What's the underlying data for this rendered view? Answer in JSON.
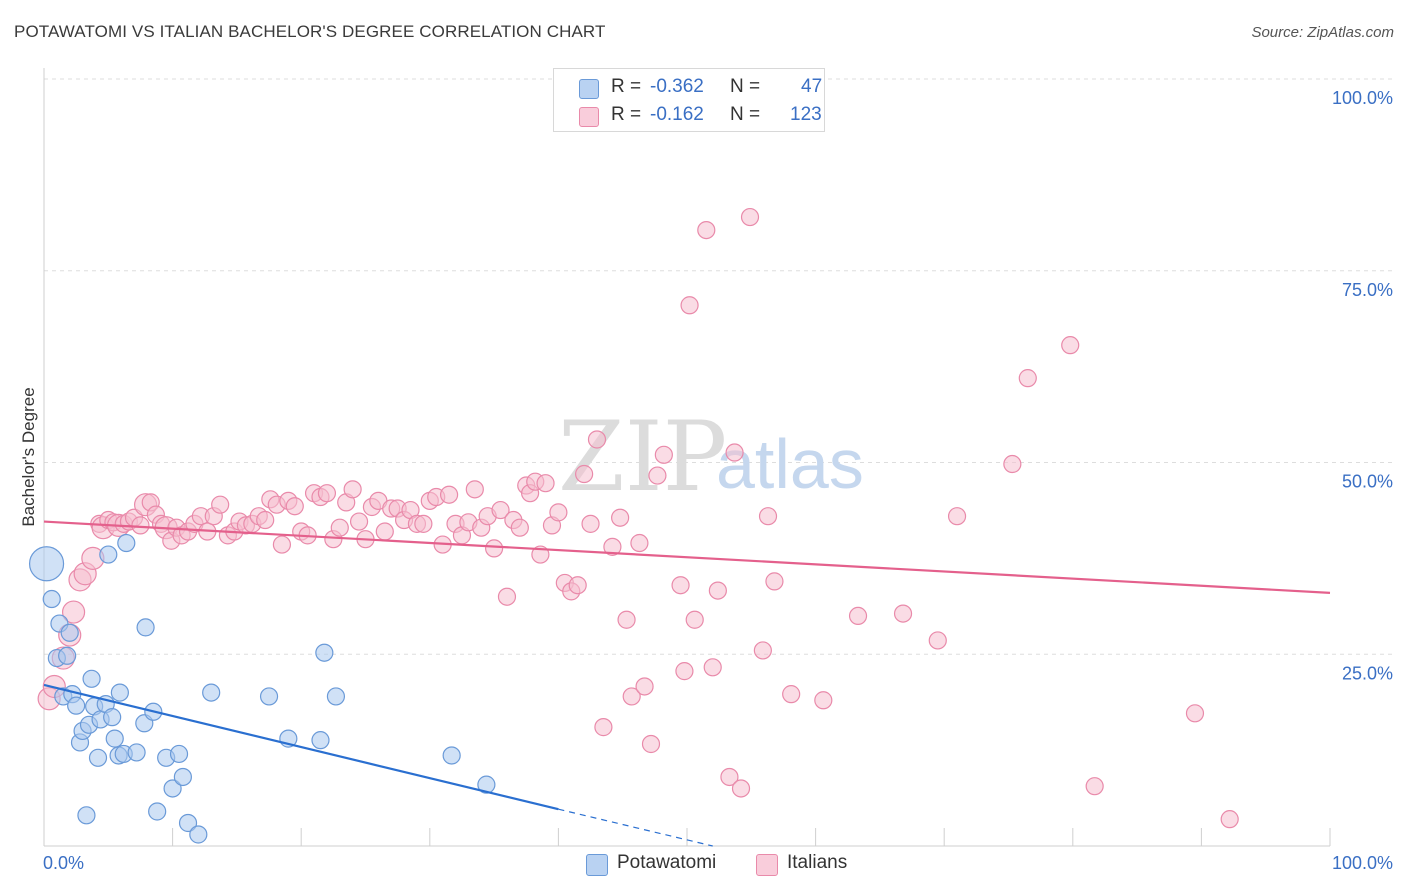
{
  "header": {
    "title": "POTAWATOMI VS ITALIAN BACHELOR'S DEGREE CORRELATION CHART",
    "source": "Source: ZipAtlas.com"
  },
  "legend": {
    "rows": [
      {
        "r_label": "R =",
        "r_value": "-0.362",
        "n_label": "N =",
        "n_value": "47"
      },
      {
        "r_label": "R =",
        "r_value": "-0.162",
        "n_label": "N =",
        "n_value": "123"
      }
    ],
    "bottom": [
      "Potawatomi",
      "Italians"
    ]
  },
  "colors": {
    "potawatomi_fill": "#a9c8ef",
    "potawatomi_stroke": "#6a9ad8",
    "potawatomi_line": "#2a6fd0",
    "italians_fill": "#f6bfd0",
    "italians_stroke": "#e98aaa",
    "italians_line": "#e4608c",
    "tick_label": "#3a6fc4"
  },
  "watermark": {
    "zip": "ZIP",
    "atlas": "atlas"
  },
  "chart_data": {
    "type": "scatter",
    "title": "POTAWATOMI VS ITALIAN BACHELOR'S DEGREE CORRELATION CHART",
    "xlabel": "",
    "ylabel": "Bachelor's Degree",
    "xlim": [
      0,
      100
    ],
    "ylim": [
      0,
      100
    ],
    "x_tick_labels": [
      "0.0%",
      "100.0%"
    ],
    "y_ticks": [
      25,
      50,
      75,
      100
    ],
    "y_tick_labels": [
      "25.0%",
      "50.0%",
      "75.0%",
      "100.0%"
    ],
    "grid": true,
    "series": [
      {
        "name": "Potawatomi",
        "r": -0.362,
        "n": 47,
        "trend": {
          "x0": 0,
          "y0": 21.0,
          "x1": 40,
          "y1": 4.8,
          "dashed_to_x": 52,
          "dashed_to_y": 0
        },
        "points": [
          [
            0.2,
            36.8,
            3
          ],
          [
            0.6,
            32.2,
            1
          ],
          [
            1.0,
            24.5,
            1
          ],
          [
            1.2,
            29.0,
            1
          ],
          [
            1.5,
            19.5,
            1
          ],
          [
            1.8,
            24.8,
            1
          ],
          [
            2.0,
            27.8,
            1
          ],
          [
            2.2,
            19.8,
            1
          ],
          [
            2.5,
            18.3,
            1
          ],
          [
            2.8,
            13.5,
            1
          ],
          [
            3.0,
            15.0,
            1
          ],
          [
            3.3,
            4.0,
            1
          ],
          [
            3.5,
            15.8,
            1
          ],
          [
            3.7,
            21.8,
            1
          ],
          [
            3.9,
            18.2,
            1
          ],
          [
            4.2,
            11.5,
            1
          ],
          [
            4.4,
            16.5,
            1
          ],
          [
            4.8,
            18.5,
            1
          ],
          [
            5.0,
            38.0,
            1
          ],
          [
            5.3,
            16.8,
            1
          ],
          [
            5.5,
            14.0,
            1
          ],
          [
            5.8,
            11.8,
            1
          ],
          [
            5.9,
            20.0,
            1
          ],
          [
            6.2,
            12.0,
            1
          ],
          [
            6.4,
            39.5,
            1
          ],
          [
            7.2,
            12.2,
            1
          ],
          [
            7.8,
            16.0,
            1
          ],
          [
            7.9,
            28.5,
            1
          ],
          [
            8.5,
            17.5,
            1
          ],
          [
            8.8,
            4.5,
            1
          ],
          [
            9.5,
            11.5,
            1
          ],
          [
            10.0,
            7.5,
            1
          ],
          [
            10.5,
            12.0,
            1
          ],
          [
            10.8,
            9.0,
            1
          ],
          [
            11.2,
            3.0,
            1
          ],
          [
            12.0,
            1.5,
            1
          ],
          [
            13.0,
            20.0,
            1
          ],
          [
            17.5,
            19.5,
            1
          ],
          [
            19.0,
            14.0,
            1
          ],
          [
            21.5,
            13.8,
            1
          ],
          [
            21.8,
            25.2,
            1
          ],
          [
            22.7,
            19.5,
            1
          ],
          [
            31.7,
            11.8,
            1
          ],
          [
            34.4,
            8.0,
            1
          ]
        ]
      },
      {
        "name": "Italians",
        "r": -0.162,
        "n": 123,
        "trend": {
          "x0": 0,
          "y0": 42.3,
          "x1": 100,
          "y1": 33.0
        },
        "points": [
          [
            0.4,
            19.2,
            2
          ],
          [
            0.8,
            20.8,
            2
          ],
          [
            1.5,
            24.5,
            2
          ],
          [
            2.0,
            27.5,
            2
          ],
          [
            2.3,
            30.5,
            2
          ],
          [
            2.8,
            34.7,
            2
          ],
          [
            3.2,
            35.5,
            2
          ],
          [
            3.8,
            37.5,
            2
          ],
          [
            4.3,
            42.0,
            1
          ],
          [
            4.6,
            41.5,
            2
          ],
          [
            5.0,
            42.5,
            1
          ],
          [
            5.4,
            42.2,
            1
          ],
          [
            5.8,
            41.8,
            2
          ],
          [
            6.2,
            42.0,
            1
          ],
          [
            6.6,
            42.3,
            1
          ],
          [
            7.0,
            42.8,
            1
          ],
          [
            7.5,
            41.8,
            1
          ],
          [
            7.9,
            44.5,
            2
          ],
          [
            8.3,
            44.8,
            1
          ],
          [
            8.7,
            43.2,
            1
          ],
          [
            9.1,
            42.0,
            1
          ],
          [
            9.5,
            41.5,
            2
          ],
          [
            9.9,
            39.8,
            1
          ],
          [
            10.3,
            41.5,
            1
          ],
          [
            10.7,
            40.5,
            1
          ],
          [
            11.2,
            41.0,
            1
          ],
          [
            11.7,
            42.0,
            1
          ],
          [
            12.2,
            43.0,
            1
          ],
          [
            12.7,
            41.0,
            1
          ],
          [
            13.2,
            43.0,
            1
          ],
          [
            13.7,
            44.5,
            1
          ],
          [
            14.3,
            40.5,
            1
          ],
          [
            14.8,
            41.0,
            1
          ],
          [
            15.2,
            42.3,
            1
          ],
          [
            15.7,
            41.8,
            1
          ],
          [
            16.2,
            42.0,
            1
          ],
          [
            16.7,
            43.0,
            1
          ],
          [
            17.2,
            42.5,
            1
          ],
          [
            17.6,
            45.2,
            1
          ],
          [
            18.1,
            44.5,
            1
          ],
          [
            18.5,
            39.3,
            1
          ],
          [
            19.0,
            45.0,
            1
          ],
          [
            19.5,
            44.3,
            1
          ],
          [
            20.0,
            41.0,
            1
          ],
          [
            20.5,
            40.5,
            1
          ],
          [
            21.0,
            46.0,
            1
          ],
          [
            21.5,
            45.5,
            1
          ],
          [
            22.0,
            46.0,
            1
          ],
          [
            22.5,
            40.0,
            1
          ],
          [
            23.0,
            41.5,
            1
          ],
          [
            23.5,
            44.8,
            1
          ],
          [
            24.0,
            46.5,
            1
          ],
          [
            24.5,
            42.3,
            1
          ],
          [
            25.0,
            40.0,
            1
          ],
          [
            25.5,
            44.2,
            1
          ],
          [
            26.0,
            45.0,
            1
          ],
          [
            26.5,
            41.0,
            1
          ],
          [
            27.0,
            44.0,
            1
          ],
          [
            27.5,
            44.0,
            1
          ],
          [
            28.0,
            42.5,
            1
          ],
          [
            28.5,
            43.8,
            1
          ],
          [
            29.0,
            42.0,
            1
          ],
          [
            29.5,
            42.0,
            1
          ],
          [
            30.0,
            45.0,
            1
          ],
          [
            30.5,
            45.5,
            1
          ],
          [
            31.0,
            39.3,
            1
          ],
          [
            31.5,
            45.8,
            1
          ],
          [
            32.0,
            42.0,
            1
          ],
          [
            32.5,
            40.5,
            1
          ],
          [
            33.0,
            42.2,
            1
          ],
          [
            33.5,
            46.5,
            1
          ],
          [
            34.0,
            41.5,
            1
          ],
          [
            34.5,
            43.0,
            1
          ],
          [
            35.0,
            38.8,
            1
          ],
          [
            35.5,
            43.8,
            1
          ],
          [
            36.0,
            32.5,
            1
          ],
          [
            36.5,
            42.5,
            1
          ],
          [
            37.0,
            41.5,
            1
          ],
          [
            37.5,
            47.0,
            1
          ],
          [
            37.8,
            46.0,
            1
          ],
          [
            38.2,
            47.5,
            1
          ],
          [
            38.6,
            38.0,
            1
          ],
          [
            39.0,
            47.3,
            1
          ],
          [
            39.5,
            41.8,
            1
          ],
          [
            40.0,
            43.5,
            1
          ],
          [
            40.5,
            34.3,
            1
          ],
          [
            41.0,
            33.2,
            1
          ],
          [
            41.5,
            34.0,
            1
          ],
          [
            42.0,
            48.5,
            1
          ],
          [
            42.5,
            42.0,
            1
          ],
          [
            43.0,
            53.0,
            1
          ],
          [
            43.5,
            15.5,
            1
          ],
          [
            44.2,
            39.0,
            1
          ],
          [
            44.8,
            42.8,
            1
          ],
          [
            45.3,
            29.5,
            1
          ],
          [
            45.7,
            19.5,
            1
          ],
          [
            46.3,
            39.5,
            1
          ],
          [
            46.7,
            20.8,
            1
          ],
          [
            47.2,
            13.3,
            1
          ],
          [
            47.7,
            48.3,
            1
          ],
          [
            48.2,
            51.0,
            1
          ],
          [
            49.5,
            34.0,
            1
          ],
          [
            49.8,
            22.8,
            1
          ],
          [
            50.2,
            70.5,
            1
          ],
          [
            50.6,
            29.5,
            1
          ],
          [
            51.5,
            80.3,
            1
          ],
          [
            52.0,
            23.3,
            1
          ],
          [
            52.4,
            33.3,
            1
          ],
          [
            53.3,
            9.0,
            1
          ],
          [
            53.7,
            51.3,
            1
          ],
          [
            54.2,
            7.5,
            1
          ],
          [
            54.9,
            82.0,
            1
          ],
          [
            55.9,
            25.5,
            1
          ],
          [
            56.3,
            43.0,
            1
          ],
          [
            56.8,
            34.5,
            1
          ],
          [
            58.1,
            19.8,
            1
          ],
          [
            60.6,
            19.0,
            1
          ],
          [
            63.3,
            30.0,
            1
          ],
          [
            66.8,
            30.3,
            1
          ],
          [
            69.5,
            26.8,
            1
          ],
          [
            71.0,
            43.0,
            1
          ],
          [
            75.3,
            49.8,
            1
          ],
          [
            76.5,
            61.0,
            1
          ],
          [
            79.8,
            65.3,
            1
          ],
          [
            81.7,
            7.8,
            1
          ],
          [
            89.5,
            17.3,
            1
          ],
          [
            92.2,
            3.5,
            1
          ]
        ]
      }
    ]
  }
}
